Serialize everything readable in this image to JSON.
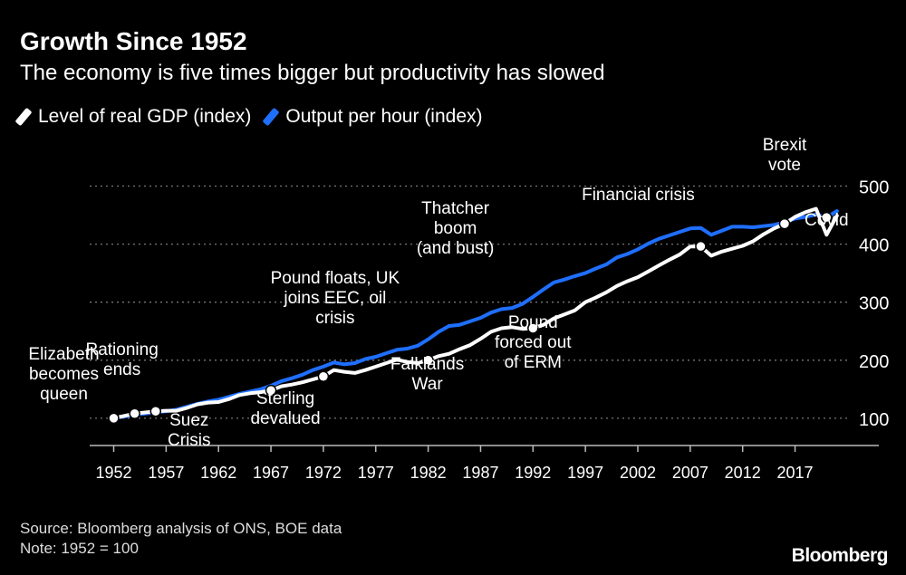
{
  "title": "Growth Since 1952",
  "subtitle": "The economy is five times bigger but productivity has slowed",
  "source": "Source: Bloomberg analysis of ONS, BOE data",
  "note": "Note: 1952 = 100",
  "logo": "Bloomberg",
  "colors": {
    "background": "#000000",
    "gdp": "#ffffff",
    "productivity": "#1f6fff",
    "grid": "#777777"
  },
  "chart_data": {
    "type": "line",
    "title": "Growth Since 1952",
    "xlabel": "",
    "ylabel": "",
    "xlim": [
      1950,
      2024
    ],
    "ylim": [
      0,
      500
    ],
    "x_ticks": [
      1952,
      1957,
      1962,
      1967,
      1972,
      1977,
      1982,
      1987,
      1992,
      1997,
      2002,
      2007,
      2012,
      2017
    ],
    "x_tick_labels": [
      "1952",
      "1957",
      "1962",
      "1967",
      "1972",
      "1977",
      "1982",
      "1987",
      "1992",
      "1997",
      "2002",
      "2007",
      "2012",
      "2017"
    ],
    "y_ticks": [
      100,
      200,
      300,
      400,
      500
    ],
    "y_tick_labels": [
      "100",
      "200",
      "300",
      "400",
      "500"
    ],
    "grid": "horizontal-dotted",
    "legend_position": "top-left",
    "series": [
      {
        "name": "Level of real GDP (index)",
        "color": "#ffffff",
        "x": [
          1952,
          1953,
          1954,
          1955,
          1956,
          1957,
          1958,
          1959,
          1960,
          1961,
          1962,
          1963,
          1964,
          1965,
          1966,
          1967,
          1968,
          1969,
          1970,
          1971,
          1972,
          1973,
          1974,
          1975,
          1976,
          1977,
          1978,
          1979,
          1980,
          1981,
          1982,
          1983,
          1984,
          1985,
          1986,
          1987,
          1988,
          1989,
          1990,
          1991,
          1992,
          1993,
          1994,
          1995,
          1996,
          1997,
          1998,
          1999,
          2000,
          2001,
          2002,
          2003,
          2004,
          2005,
          2006,
          2007,
          2008,
          2009,
          2010,
          2011,
          2012,
          2013,
          2014,
          2015,
          2016,
          2017,
          2018,
          2019,
          2020,
          2021
        ],
        "values": [
          100,
          104,
          108,
          110,
          112,
          113,
          113,
          118,
          124,
          127,
          128,
          133,
          140,
          143,
          145,
          148,
          155,
          158,
          162,
          167,
          172,
          183,
          180,
          178,
          183,
          189,
          195,
          201,
          197,
          195,
          200,
          207,
          211,
          219,
          226,
          237,
          249,
          255,
          257,
          254,
          255,
          261,
          272,
          279,
          286,
          300,
          308,
          317,
          328,
          336,
          343,
          353,
          363,
          373,
          382,
          396,
          396,
          380,
          387,
          392,
          397,
          405,
          417,
          427,
          435,
          447,
          455,
          461,
          416,
          449
        ]
      },
      {
        "name": "Output per hour (index)",
        "color": "#1f6fff",
        "x": [
          1952,
          1953,
          1954,
          1955,
          1956,
          1957,
          1958,
          1959,
          1960,
          1961,
          1962,
          1963,
          1964,
          1965,
          1966,
          1967,
          1968,
          1969,
          1970,
          1971,
          1972,
          1973,
          1974,
          1975,
          1976,
          1977,
          1978,
          1979,
          1980,
          1981,
          1982,
          1983,
          1984,
          1985,
          1986,
          1987,
          1988,
          1989,
          1990,
          1991,
          1992,
          1993,
          1994,
          1995,
          1996,
          1997,
          1998,
          1999,
          2000,
          2001,
          2002,
          2003,
          2004,
          2005,
          2006,
          2007,
          2008,
          2009,
          2010,
          2011,
          2012,
          2013,
          2014,
          2015,
          2016,
          2017,
          2018,
          2019,
          2020,
          2021
        ],
        "values": [
          100,
          103,
          106,
          108,
          110,
          112,
          115,
          120,
          125,
          129,
          132,
          137,
          142,
          146,
          150,
          156,
          164,
          169,
          175,
          183,
          189,
          196,
          193,
          195,
          202,
          206,
          212,
          218,
          220,
          225,
          236,
          249,
          259,
          261,
          267,
          273,
          282,
          288,
          290,
          297,
          309,
          322,
          334,
          339,
          345,
          350,
          358,
          365,
          377,
          383,
          391,
          401,
          409,
          415,
          421,
          427,
          428,
          416,
          423,
          430,
          430,
          429,
          431,
          433,
          438,
          444,
          447,
          451,
          446,
          457
        ]
      }
    ],
    "annotations": [
      {
        "lines": [
          "Elizabeth",
          "becomes",
          "queen"
        ],
        "x": 1952,
        "series": 0,
        "marker": true
      },
      {
        "lines": [
          "Rationing",
          "ends"
        ],
        "x": 1954,
        "series": 0,
        "marker": true
      },
      {
        "lines": [
          "Suez",
          "Crisis"
        ],
        "x": 1956,
        "series": 0,
        "marker": true
      },
      {
        "lines": [
          "Sterling",
          "devalued"
        ],
        "x": 1967,
        "series": 0,
        "marker": true
      },
      {
        "lines": [
          "Pound floats, UK",
          "joins EEC, oil",
          "crisis"
        ],
        "x": 1972,
        "series": 0,
        "marker": true
      },
      {
        "lines": [
          "Thatcher",
          "boom",
          "(and bust)"
        ],
        "x": 1982,
        "series": 0,
        "marker": true
      },
      {
        "lines": [
          "Falklands",
          "War"
        ],
        "x": 1982,
        "series": 0,
        "marker": false
      },
      {
        "lines": [
          "Pound",
          "forced out",
          "of ERM"
        ],
        "x": 1992,
        "series": 0,
        "marker": true
      },
      {
        "lines": [
          "Financial crisis"
        ],
        "x": 2008,
        "series": 0,
        "marker": true
      },
      {
        "lines": [
          "Brexit",
          "vote"
        ],
        "x": 2016,
        "series": 0,
        "marker": true
      },
      {
        "lines": [
          "Covid"
        ],
        "x": 2020,
        "series": 1,
        "marker": true
      }
    ]
  }
}
